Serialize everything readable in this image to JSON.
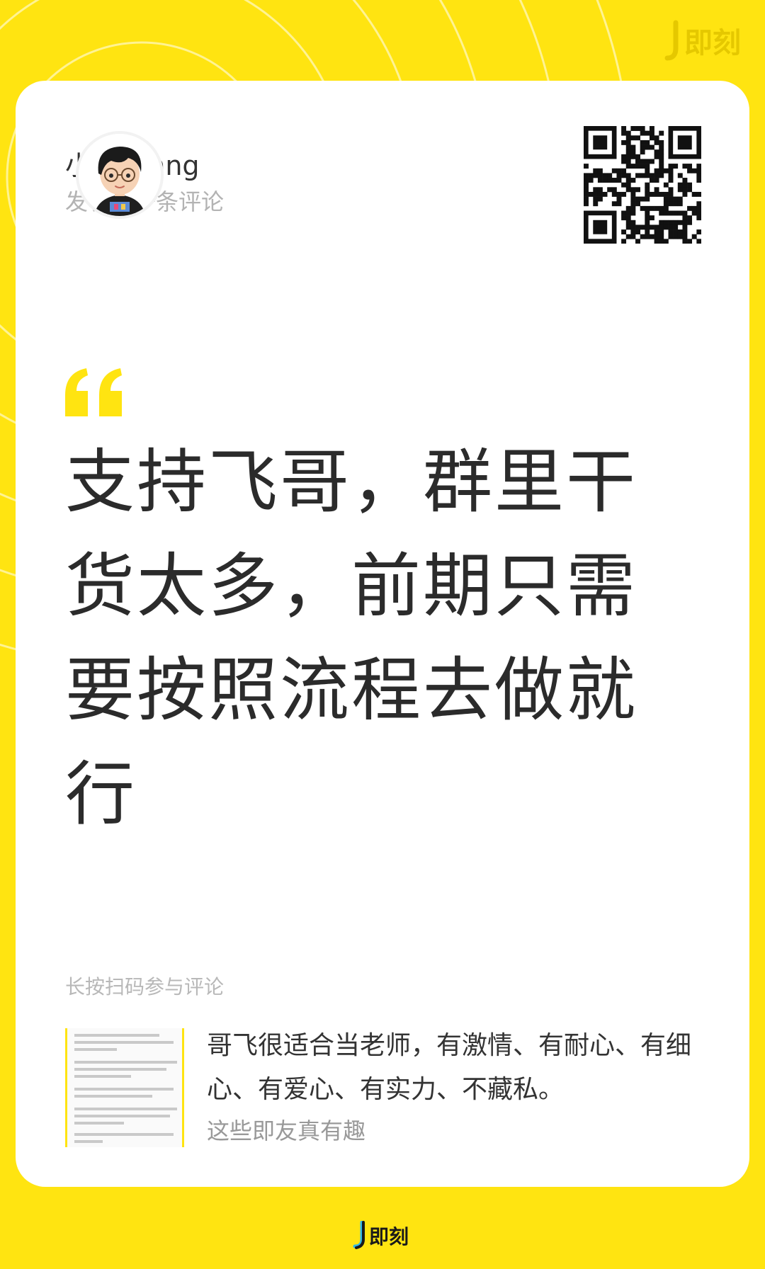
{
  "brand": {
    "name": "即刻",
    "color": "#FFE411",
    "logo_icon": "jike-logo-icon"
  },
  "author": {
    "name": "小杨Yanng",
    "action": "发表了一条评论",
    "avatar_icon": "avatar-cartoon-boy"
  },
  "qr_icon": "qr-code-icon",
  "comment": {
    "quote_icon": "quote-mark-icon",
    "text": "支持飞哥，群里干货太多，前期只需要按照流程去做就行"
  },
  "footer": {
    "scan_hint": "长按扫码参与评论",
    "post": {
      "thumbnail_icon": "post-thumbnail",
      "text": "哥飞很适合当老师，有激情、有耐心、有细心、有爱心、有实力、不藏私。",
      "topic": "这些即友真有趣"
    }
  }
}
